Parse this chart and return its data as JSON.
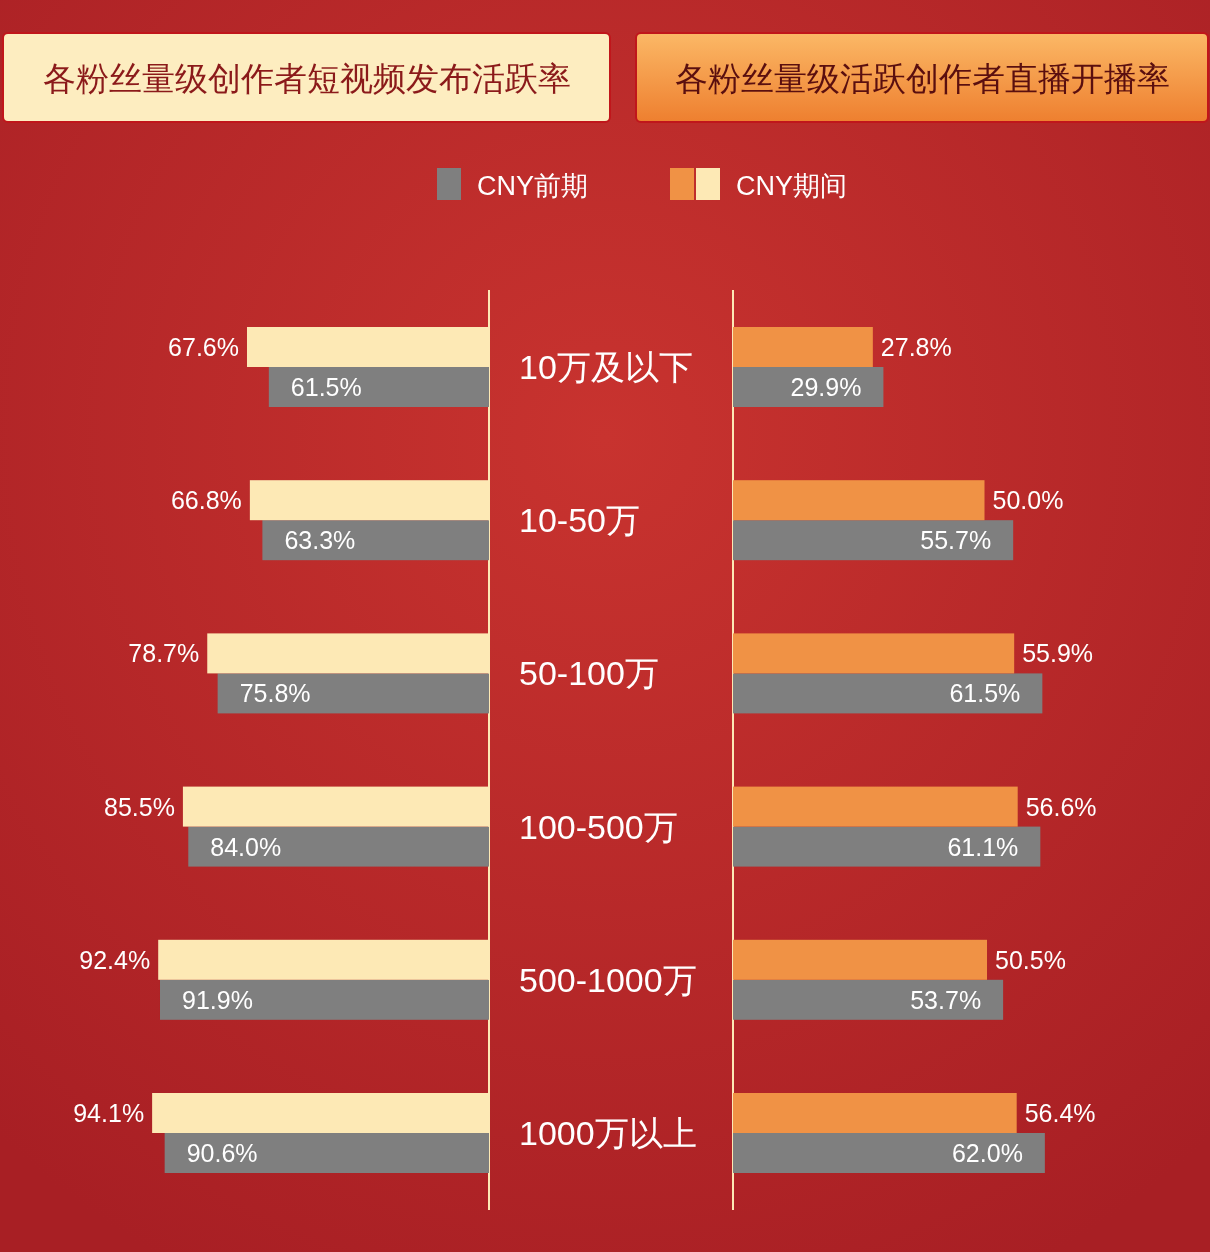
{
  "chart_data": [
    {
      "type": "bar",
      "orientation": "horizontal",
      "title": "各粉丝量级创作者短视频发布活跃率",
      "categories": [
        "10万及以下",
        "10-50万",
        "50-100万",
        "100-500万",
        "500-1000万",
        "1000万以上"
      ],
      "series": [
        {
          "name": "CNY前期",
          "color": "#7f7f7f",
          "values": [
            61.5,
            63.3,
            75.8,
            84.0,
            91.9,
            90.6
          ],
          "value_labels": [
            "61.5%",
            "63.3%",
            "75.8%",
            "84.0%",
            "91.9%",
            "90.6%"
          ]
        },
        {
          "name": "CNY期间",
          "color": "#fde9b5",
          "values": [
            67.6,
            66.8,
            78.7,
            85.5,
            92.4,
            94.1
          ],
          "value_labels": [
            "67.6%",
            "66.8%",
            "78.7%",
            "85.5%",
            "92.4%",
            "94.1%"
          ]
        }
      ],
      "legend": "top"
    },
    {
      "type": "bar",
      "orientation": "horizontal",
      "title": "各粉丝量级活跃创作者直播开播率",
      "series": [
        {
          "color": "#7f7f7f",
          "values": [
            29.9,
            55.7,
            61.5,
            61.1,
            53.7,
            62.0
          ],
          "value_labels": [
            "29.9%",
            "55.7%",
            "61.5%",
            "61.1%",
            "53.7%",
            "62.0%"
          ]
        },
        {
          "color": "#f09245",
          "values": [
            27.8,
            50.0,
            55.9,
            56.6,
            50.5,
            56.4
          ],
          "value_labels": [
            "27.8%",
            "50.0%",
            "55.9%",
            "56.6%",
            "50.5%",
            "56.4%"
          ]
        }
      ]
    }
  ]
}
